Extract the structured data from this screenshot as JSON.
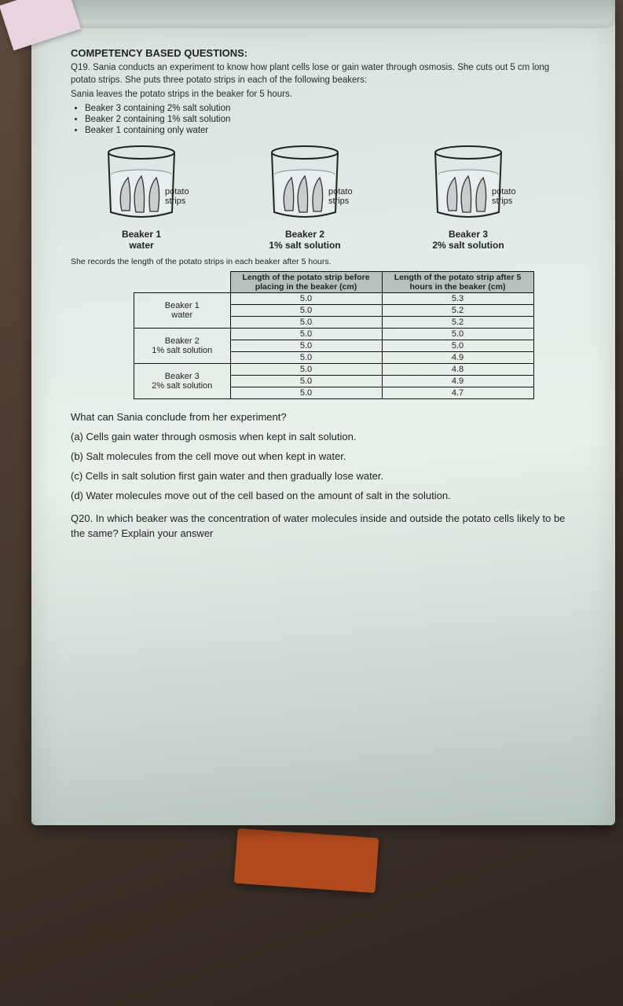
{
  "section_title": "COMPETENCY BASED QUESTIONS:",
  "q19_intro": "Q19. Sania conducts an experiment to know how plant cells lose or gain water through osmosis. She cuts out 5 cm long potato strips. She puts three potato strips in each of the following beakers:",
  "q19_line2": "Sania leaves the potato strips in the beaker for 5 hours.",
  "bullets": [
    "Beaker 3 containing 2% salt solution",
    "Beaker 2 containing 1% salt solution",
    "Beaker 1 containing only water"
  ],
  "beakers": [
    {
      "side_label": "potato\nstrips",
      "caption_line1": "Beaker 1",
      "caption_line2": "water"
    },
    {
      "side_label": "potato\nstrips",
      "caption_line1": "Beaker 2",
      "caption_line2": "1% salt solution"
    },
    {
      "side_label": "potato\nstrips",
      "caption_line1": "Beaker 3",
      "caption_line2": "2% salt solution"
    }
  ],
  "record_line": "She records the length of the potato strips in each beaker after 5 hours.",
  "table": {
    "header_col1": "Length of the potato strip before placing in the beaker (cm)",
    "header_col2": "Length of the potato strip after 5 hours in the beaker (cm)",
    "groups": [
      {
        "label": "Beaker 1\nwater",
        "rows": [
          [
            "5.0",
            "5.3"
          ],
          [
            "5.0",
            "5.2"
          ],
          [
            "5.0",
            "5.2"
          ]
        ]
      },
      {
        "label": "Beaker 2\n1% salt solution",
        "rows": [
          [
            "5.0",
            "5.0"
          ],
          [
            "5.0",
            "5.0"
          ],
          [
            "5.0",
            "4.9"
          ]
        ]
      },
      {
        "label": "Beaker 3\n2% salt solution",
        "rows": [
          [
            "5.0",
            "4.8"
          ],
          [
            "5.0",
            "4.9"
          ],
          [
            "5.0",
            "4.7"
          ]
        ]
      }
    ],
    "header_bg": "#b7c1bb",
    "border_color": "#111111",
    "font_size_pt": 11
  },
  "question_text": "What can Sania conclude from her experiment?",
  "options": {
    "a": "(a) Cells gain water through osmosis when kept in salt solution.",
    "b": "(b) Salt molecules from the cell move out when kept in water.",
    "c": "(c) Cells in salt solution first gain water and then gradually lose water.",
    "d": "(d) Water molecules move out of the cell based on the amount of salt in the solution."
  },
  "q20": "Q20. In which beaker was the concentration of water molecules inside and outside the potato cells likely to be the same? Explain your answer",
  "diagram_style": {
    "beaker_outline": "#222222",
    "water_fill": "#e6eef0",
    "strip_fill": "#c8cecb",
    "strip_stroke": "#333333"
  }
}
